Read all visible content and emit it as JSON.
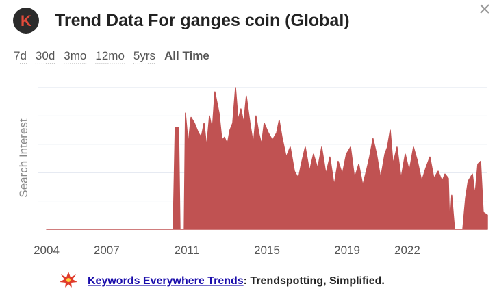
{
  "logo": "K",
  "time_ranges": [
    "7d",
    "30d",
    "3mo",
    "12mo",
    "5yrs",
    "All Time"
  ],
  "chart_data": {
    "type": "area",
    "title": "Trend Data For ganges coin (Global)",
    "y_label": "Search Interest",
    "x": [
      2004.0,
      2010.32,
      2010.42,
      2010.59,
      2010.66,
      2010.87,
      2010.93,
      2011.07,
      2011.21,
      2011.38,
      2011.58,
      2011.72,
      2011.86,
      2011.99,
      2012.13,
      2012.27,
      2012.4,
      2012.61,
      2012.75,
      2012.88,
      2013.02,
      2013.15,
      2013.29,
      2013.43,
      2013.56,
      2013.7,
      2013.84,
      2013.97,
      2014.15,
      2014.32,
      2014.45,
      2014.59,
      2014.73,
      2014.86,
      2015.07,
      2015.27,
      2015.48,
      2015.61,
      2015.75,
      2015.96,
      2016.16,
      2016.37,
      2016.57,
      2016.71,
      2016.91,
      2017.12,
      2017.32,
      2017.53,
      2017.73,
      2017.94,
      2018.14,
      2018.35,
      2018.55,
      2018.76,
      2018.96,
      2019.17,
      2019.37,
      2019.58,
      2019.78,
      2019.99,
      2020.12,
      2020.29,
      2020.47,
      2020.67,
      2020.88,
      2021.01,
      2021.15,
      2021.29,
      2021.49,
      2021.69,
      2021.9,
      2022.1,
      2022.31,
      2022.51,
      2022.72,
      2022.92,
      2023.13,
      2023.33,
      2023.54,
      2023.74,
      2023.88,
      2024.05,
      2024.12,
      2024.22,
      2024.36,
      2024.77,
      2024.91,
      2025.04,
      2025.25,
      2025.38,
      2025.52,
      2025.66,
      2025.79,
      2026.0
    ],
    "series": [
      {
        "color": "#c05252",
        "values": [
          0,
          0,
          72,
          72,
          0,
          0,
          82,
          60,
          79,
          75,
          68,
          65,
          75,
          58,
          80,
          70,
          97,
          82,
          63,
          65,
          60,
          70,
          75,
          100,
          77,
          85,
          75,
          94,
          75,
          60,
          80,
          68,
          60,
          75,
          68,
          63,
          68,
          77,
          65,
          51,
          58,
          41,
          36,
          46,
          58,
          41,
          53,
          43,
          58,
          39,
          51,
          31,
          48,
          39,
          53,
          58,
          36,
          46,
          31,
          43,
          51,
          64,
          53,
          36,
          53,
          58,
          70,
          46,
          58,
          36,
          53,
          41,
          58,
          48,
          34,
          43,
          51,
          36,
          41,
          34,
          39,
          36,
          0,
          24,
          0,
          0,
          22,
          34,
          39,
          24,
          46,
          48,
          12,
          10
        ]
      }
    ],
    "xlim": [
      2004,
      2026
    ],
    "ylim": [
      0,
      100
    ],
    "xticks": [
      2004,
      2007,
      2011,
      2015,
      2019,
      2022
    ],
    "grid_lines": [
      20,
      40,
      60,
      80,
      100
    ]
  },
  "footer": {
    "link": "Keywords Everywhere Trends",
    "tagline": ": Trendspotting, Simplified."
  }
}
